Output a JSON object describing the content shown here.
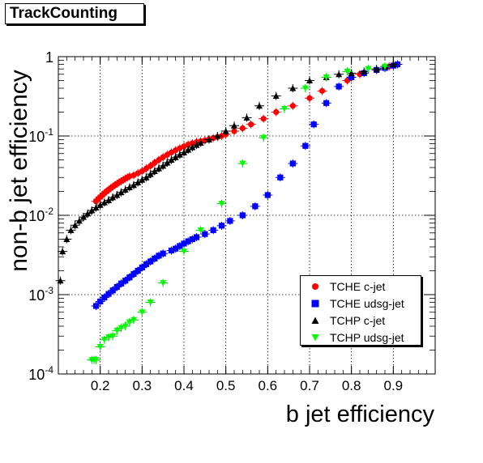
{
  "page_title": "TrackCounting",
  "chart_data": {
    "type": "scatter",
    "title": "TrackCounting",
    "xlabel": "b jet efficiency",
    "ylabel": "non-b jet efficiency",
    "yscale": "log",
    "xlim": [
      0.1,
      1.0
    ],
    "ylim": [
      0.0001,
      1
    ],
    "grid": true,
    "legend_position": "bottom-right",
    "x_ticks": [
      "0.2",
      "0.3",
      "0.4",
      "0.5",
      "0.6",
      "0.7",
      "0.8",
      "0.9"
    ],
    "y_ticks": [
      "10^-4",
      "10^-3",
      "10^-2",
      "10^-1",
      "1"
    ],
    "series": [
      {
        "name": "TCHE c-jet",
        "color": "#ff0000",
        "marker": "circle",
        "x": [
          0.19,
          0.195,
          0.2,
          0.205,
          0.21,
          0.215,
          0.22,
          0.225,
          0.23,
          0.235,
          0.24,
          0.245,
          0.25,
          0.255,
          0.26,
          0.265,
          0.27,
          0.28,
          0.29,
          0.3,
          0.31,
          0.32,
          0.33,
          0.34,
          0.35,
          0.36,
          0.37,
          0.38,
          0.39,
          0.4,
          0.41,
          0.42,
          0.43,
          0.44,
          0.45,
          0.46,
          0.47,
          0.48,
          0.49,
          0.5,
          0.52,
          0.54,
          0.56,
          0.59,
          0.62,
          0.66,
          0.7,
          0.73,
          0.79,
          0.82,
          0.86,
          0.89,
          0.91
        ],
        "y": [
          0.015,
          0.016,
          0.017,
          0.018,
          0.019,
          0.02,
          0.021,
          0.022,
          0.023,
          0.024,
          0.025,
          0.026,
          0.027,
          0.028,
          0.029,
          0.03,
          0.031,
          0.032,
          0.034,
          0.036,
          0.039,
          0.042,
          0.046,
          0.05,
          0.054,
          0.058,
          0.062,
          0.066,
          0.07,
          0.074,
          0.078,
          0.081,
          0.084,
          0.086,
          0.088,
          0.091,
          0.094,
          0.097,
          0.1,
          0.105,
          0.115,
          0.125,
          0.14,
          0.165,
          0.2,
          0.24,
          0.3,
          0.37,
          0.5,
          0.6,
          0.68,
          0.75,
          0.8
        ]
      },
      {
        "name": "TCHE udsg-jet",
        "color": "#0000ff",
        "marker": "square",
        "x": [
          0.19,
          0.2,
          0.21,
          0.22,
          0.23,
          0.24,
          0.25,
          0.26,
          0.27,
          0.28,
          0.29,
          0.3,
          0.31,
          0.32,
          0.33,
          0.34,
          0.35,
          0.37,
          0.38,
          0.39,
          0.4,
          0.41,
          0.42,
          0.43,
          0.45,
          0.47,
          0.49,
          0.51,
          0.54,
          0.57,
          0.6,
          0.63,
          0.66,
          0.69,
          0.71,
          0.74,
          0.77,
          0.8,
          0.83,
          0.86,
          0.88,
          0.9,
          0.91
        ],
        "y": [
          0.00072,
          0.00082,
          0.00092,
          0.00102,
          0.00113,
          0.00125,
          0.00138,
          0.0015,
          0.00165,
          0.00182,
          0.002,
          0.0022,
          0.00242,
          0.00262,
          0.00285,
          0.0031,
          0.0033,
          0.0036,
          0.0038,
          0.0041,
          0.0044,
          0.0047,
          0.005,
          0.0053,
          0.0058,
          0.0065,
          0.0074,
          0.0085,
          0.01,
          0.013,
          0.018,
          0.03,
          0.045,
          0.075,
          0.14,
          0.26,
          0.42,
          0.55,
          0.62,
          0.68,
          0.72,
          0.77,
          0.8
        ]
      },
      {
        "name": "TCHP c-jet",
        "color": "#000000",
        "marker": "triangle-up",
        "x": [
          0.105,
          0.11,
          0.12,
          0.13,
          0.14,
          0.15,
          0.16,
          0.17,
          0.18,
          0.19,
          0.2,
          0.21,
          0.22,
          0.23,
          0.24,
          0.25,
          0.26,
          0.27,
          0.28,
          0.29,
          0.3,
          0.31,
          0.32,
          0.33,
          0.34,
          0.35,
          0.36,
          0.37,
          0.38,
          0.39,
          0.4,
          0.41,
          0.42,
          0.43,
          0.44,
          0.46,
          0.48,
          0.5,
          0.52,
          0.55,
          0.58,
          0.62,
          0.66,
          0.7,
          0.74,
          0.77,
          0.8,
          0.83,
          0.86,
          0.88,
          0.9
        ],
        "y": [
          0.0015,
          0.0035,
          0.005,
          0.0065,
          0.0075,
          0.0085,
          0.0095,
          0.0105,
          0.0115,
          0.0125,
          0.0135,
          0.0145,
          0.0155,
          0.0168,
          0.018,
          0.0195,
          0.021,
          0.0225,
          0.024,
          0.026,
          0.028,
          0.03,
          0.033,
          0.036,
          0.039,
          0.042,
          0.046,
          0.05,
          0.054,
          0.058,
          0.062,
          0.067,
          0.072,
          0.077,
          0.082,
          0.09,
          0.1,
          0.115,
          0.135,
          0.17,
          0.24,
          0.32,
          0.4,
          0.5,
          0.55,
          0.6,
          0.62,
          0.65,
          0.7,
          0.75,
          0.8
        ]
      },
      {
        "name": "TCHP udsg-jet",
        "color": "#00ff00",
        "marker": "triangle-down",
        "x": [
          0.18,
          0.185,
          0.19,
          0.2,
          0.21,
          0.22,
          0.23,
          0.24,
          0.25,
          0.26,
          0.27,
          0.28,
          0.3,
          0.32,
          0.35,
          0.4,
          0.44,
          0.49,
          0.54,
          0.59,
          0.64,
          0.69,
          0.74,
          0.79,
          0.84,
          0.88
        ],
        "y": [
          0.00015,
          0.00015,
          0.00015,
          0.00022,
          0.00027,
          0.00029,
          0.0003,
          0.00035,
          0.00038,
          0.0004,
          0.00045,
          0.00048,
          0.0006,
          0.0008,
          0.0014,
          0.0035,
          0.0065,
          0.014,
          0.045,
          0.095,
          0.22,
          0.4,
          0.55,
          0.65,
          0.7,
          0.75
        ]
      }
    ]
  }
}
